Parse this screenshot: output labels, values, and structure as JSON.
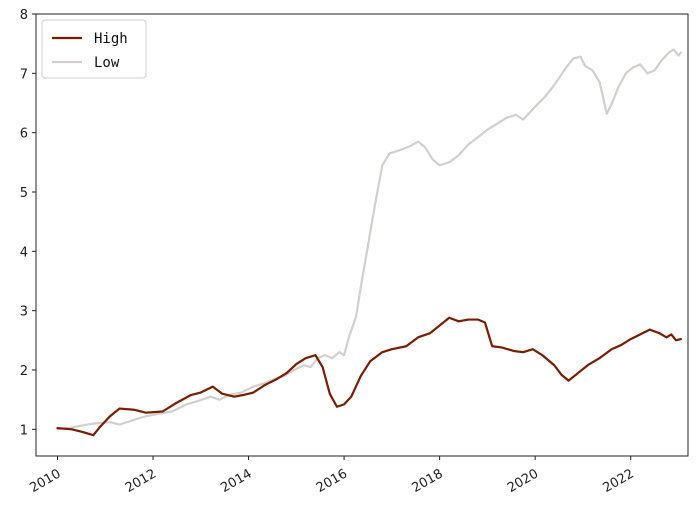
{
  "chart_data": {
    "type": "line",
    "title": "",
    "xlabel": "",
    "ylabel": "",
    "xlim": [
      2009.55,
      2023.2
    ],
    "ylim": [
      0.55,
      8.0
    ],
    "grid": false,
    "legend_position": "top-left",
    "x_ticks": [
      2010,
      2012,
      2014,
      2016,
      2018,
      2020,
      2022
    ],
    "x_tick_labels": [
      "2010",
      "2012",
      "2014",
      "2016",
      "2018",
      "2020",
      "2022"
    ],
    "y_ticks": [
      1,
      2,
      3,
      4,
      5,
      6,
      7,
      8
    ],
    "y_tick_labels": [
      "1",
      "2",
      "3",
      "4",
      "5",
      "6",
      "7",
      "8"
    ],
    "series": [
      {
        "name": "High",
        "color": "#7a1c00",
        "points": [
          [
            2010.0,
            1.02
          ],
          [
            2010.3,
            1.0
          ],
          [
            2010.55,
            0.95
          ],
          [
            2010.75,
            0.9
          ],
          [
            2010.9,
            1.05
          ],
          [
            2011.1,
            1.22
          ],
          [
            2011.3,
            1.35
          ],
          [
            2011.6,
            1.33
          ],
          [
            2011.85,
            1.28
          ],
          [
            2012.2,
            1.3
          ],
          [
            2012.5,
            1.45
          ],
          [
            2012.8,
            1.58
          ],
          [
            2013.0,
            1.62
          ],
          [
            2013.25,
            1.72
          ],
          [
            2013.45,
            1.6
          ],
          [
            2013.7,
            1.55
          ],
          [
            2013.9,
            1.58
          ],
          [
            2014.1,
            1.62
          ],
          [
            2014.35,
            1.75
          ],
          [
            2014.6,
            1.85
          ],
          [
            2014.8,
            1.95
          ],
          [
            2015.0,
            2.1
          ],
          [
            2015.2,
            2.2
          ],
          [
            2015.4,
            2.25
          ],
          [
            2015.55,
            2.05
          ],
          [
            2015.7,
            1.6
          ],
          [
            2015.85,
            1.38
          ],
          [
            2016.0,
            1.42
          ],
          [
            2016.15,
            1.55
          ],
          [
            2016.35,
            1.9
          ],
          [
            2016.55,
            2.15
          ],
          [
            2016.8,
            2.3
          ],
          [
            2017.0,
            2.35
          ],
          [
            2017.3,
            2.4
          ],
          [
            2017.55,
            2.55
          ],
          [
            2017.8,
            2.62
          ],
          [
            2018.0,
            2.75
          ],
          [
            2018.2,
            2.88
          ],
          [
            2018.4,
            2.82
          ],
          [
            2018.6,
            2.85
          ],
          [
            2018.8,
            2.85
          ],
          [
            2018.95,
            2.8
          ],
          [
            2019.1,
            2.4
          ],
          [
            2019.3,
            2.38
          ],
          [
            2019.55,
            2.32
          ],
          [
            2019.75,
            2.3
          ],
          [
            2019.95,
            2.35
          ],
          [
            2020.15,
            2.25
          ],
          [
            2020.4,
            2.08
          ],
          [
            2020.55,
            1.92
          ],
          [
            2020.7,
            1.82
          ],
          [
            2020.9,
            1.95
          ],
          [
            2021.1,
            2.08
          ],
          [
            2021.35,
            2.2
          ],
          [
            2021.6,
            2.35
          ],
          [
            2021.8,
            2.42
          ],
          [
            2022.0,
            2.52
          ],
          [
            2022.2,
            2.6
          ],
          [
            2022.4,
            2.68
          ],
          [
            2022.6,
            2.62
          ],
          [
            2022.75,
            2.55
          ],
          [
            2022.85,
            2.6
          ],
          [
            2022.95,
            2.5
          ],
          [
            2023.05,
            2.52
          ]
        ]
      },
      {
        "name": "Low",
        "color": "#d3cfcc",
        "points": [
          [
            2010.0,
            1.0
          ],
          [
            2010.3,
            1.03
          ],
          [
            2010.55,
            1.07
          ],
          [
            2010.8,
            1.1
          ],
          [
            2011.1,
            1.12
          ],
          [
            2011.3,
            1.08
          ],
          [
            2011.6,
            1.16
          ],
          [
            2011.85,
            1.22
          ],
          [
            2012.1,
            1.26
          ],
          [
            2012.4,
            1.3
          ],
          [
            2012.7,
            1.42
          ],
          [
            2012.95,
            1.48
          ],
          [
            2013.2,
            1.55
          ],
          [
            2013.4,
            1.5
          ],
          [
            2013.6,
            1.58
          ],
          [
            2013.85,
            1.62
          ],
          [
            2014.1,
            1.72
          ],
          [
            2014.35,
            1.78
          ],
          [
            2014.55,
            1.85
          ],
          [
            2014.75,
            1.9
          ],
          [
            2014.95,
            2.0
          ],
          [
            2015.15,
            2.08
          ],
          [
            2015.3,
            2.05
          ],
          [
            2015.45,
            2.2
          ],
          [
            2015.6,
            2.25
          ],
          [
            2015.75,
            2.2
          ],
          [
            2015.9,
            2.3
          ],
          [
            2016.0,
            2.25
          ],
          [
            2016.1,
            2.55
          ],
          [
            2016.25,
            2.9
          ],
          [
            2016.35,
            3.4
          ],
          [
            2016.5,
            4.1
          ],
          [
            2016.65,
            4.8
          ],
          [
            2016.8,
            5.45
          ],
          [
            2016.95,
            5.65
          ],
          [
            2017.15,
            5.7
          ],
          [
            2017.4,
            5.78
          ],
          [
            2017.55,
            5.85
          ],
          [
            2017.7,
            5.75
          ],
          [
            2017.85,
            5.55
          ],
          [
            2018.0,
            5.45
          ],
          [
            2018.2,
            5.5
          ],
          [
            2018.4,
            5.62
          ],
          [
            2018.6,
            5.8
          ],
          [
            2018.8,
            5.92
          ],
          [
            2019.0,
            6.05
          ],
          [
            2019.2,
            6.15
          ],
          [
            2019.4,
            6.25
          ],
          [
            2019.6,
            6.3
          ],
          [
            2019.75,
            6.22
          ],
          [
            2019.9,
            6.35
          ],
          [
            2020.05,
            6.48
          ],
          [
            2020.2,
            6.6
          ],
          [
            2020.35,
            6.75
          ],
          [
            2020.5,
            6.92
          ],
          [
            2020.65,
            7.1
          ],
          [
            2020.8,
            7.25
          ],
          [
            2020.95,
            7.28
          ],
          [
            2021.05,
            7.12
          ],
          [
            2021.2,
            7.05
          ],
          [
            2021.35,
            6.85
          ],
          [
            2021.5,
            6.32
          ],
          [
            2021.6,
            6.48
          ],
          [
            2021.75,
            6.78
          ],
          [
            2021.9,
            7.0
          ],
          [
            2022.05,
            7.1
          ],
          [
            2022.2,
            7.15
          ],
          [
            2022.35,
            7.0
          ],
          [
            2022.5,
            7.05
          ],
          [
            2022.65,
            7.22
          ],
          [
            2022.8,
            7.35
          ],
          [
            2022.9,
            7.4
          ],
          [
            2023.0,
            7.3
          ],
          [
            2023.05,
            7.35
          ]
        ]
      }
    ]
  }
}
